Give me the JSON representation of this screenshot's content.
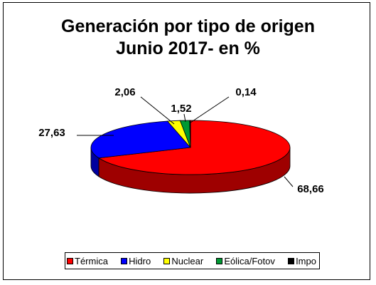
{
  "chart_data": {
    "type": "pie",
    "title": "Generación por tipo de origen",
    "subtitle": "Junio 2017- en %",
    "categories": [
      "Térmica",
      "Hidro",
      "Nuclear",
      "Eólica/Fotov",
      "Impo"
    ],
    "values": [
      68.66,
      27.63,
      2.06,
      1.52,
      0.14
    ],
    "value_labels": [
      "68,66",
      "27,63",
      "2,06",
      "1,52",
      "0,14"
    ],
    "colors": [
      "#ff0000",
      "#0000ff",
      "#ffff00",
      "#009933",
      "#000000"
    ],
    "legend_position": "bottom",
    "style": "3d"
  }
}
